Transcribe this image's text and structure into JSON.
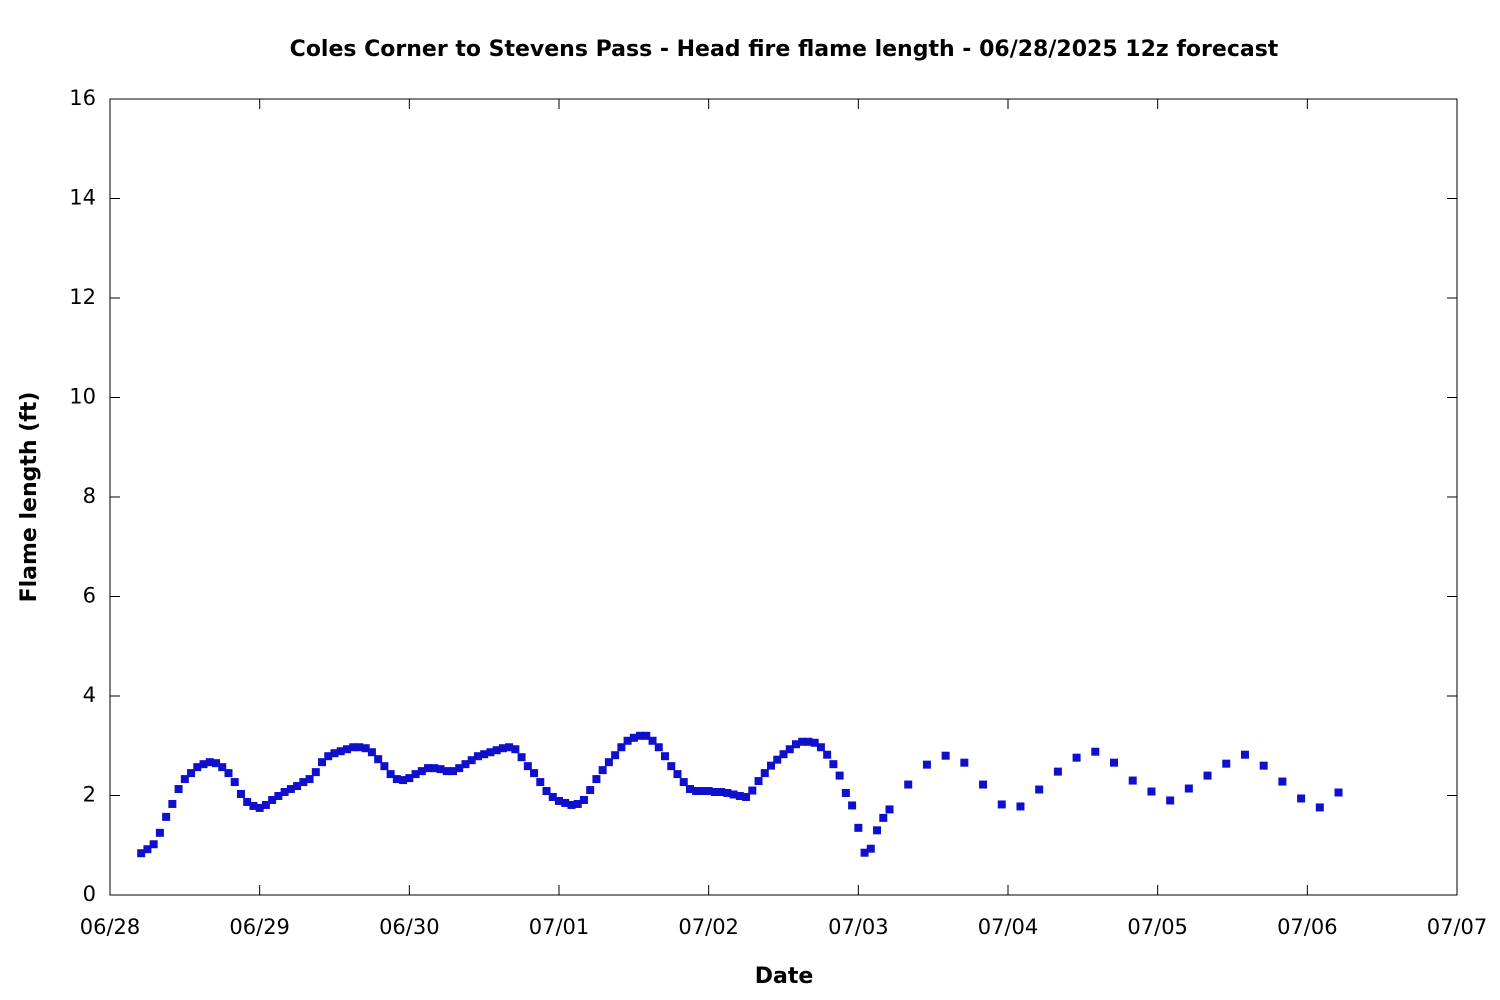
{
  "chart_data": {
    "type": "scatter",
    "title": "Coles Corner to Stevens Pass - Head fire flame length - 06/28/2025 12z forecast",
    "x_label": "Date",
    "y_label": "Flame length (ft)",
    "color": "#1010cc",
    "xlim": [
      0,
      216
    ],
    "xticks": [
      {
        "value": 0,
        "label": "06/28"
      },
      {
        "value": 24,
        "label": "06/29"
      },
      {
        "value": 48,
        "label": "06/30"
      },
      {
        "value": 72,
        "label": "07/01"
      },
      {
        "value": 96,
        "label": "07/02"
      },
      {
        "value": 120,
        "label": "07/03"
      },
      {
        "value": 144,
        "label": "07/04"
      },
      {
        "value": 168,
        "label": "07/05"
      },
      {
        "value": 192,
        "label": "07/06"
      },
      {
        "value": 216,
        "label": "07/07"
      }
    ],
    "ylim": [
      0,
      16
    ],
    "yticks": [
      0,
      2,
      4,
      6,
      8,
      10,
      12,
      14,
      16
    ],
    "x": [
      5,
      6,
      7,
      8,
      9,
      10,
      11,
      12,
      13,
      14,
      15,
      16,
      17,
      18,
      19,
      20,
      21,
      22,
      23,
      24,
      25,
      26,
      27,
      28,
      29,
      30,
      31,
      32,
      33,
      34,
      35,
      36,
      37,
      38,
      39,
      40,
      41,
      42,
      43,
      44,
      45,
      46,
      47,
      48,
      49,
      50,
      51,
      52,
      53,
      54,
      55,
      56,
      57,
      58,
      59,
      60,
      61,
      62,
      63,
      64,
      65,
      66,
      67,
      68,
      69,
      70,
      71,
      72,
      73,
      74,
      75,
      76,
      77,
      78,
      79,
      80,
      81,
      82,
      83,
      84,
      85,
      86,
      87,
      88,
      89,
      90,
      91,
      92,
      93,
      94,
      95,
      96,
      97,
      98,
      99,
      100,
      101,
      102,
      103,
      104,
      105,
      106,
      107,
      108,
      109,
      110,
      111,
      112,
      113,
      114,
      115,
      116,
      117,
      118,
      119,
      120,
      121,
      122,
      123,
      124,
      125,
      128,
      131,
      134,
      137,
      140,
      143,
      146,
      149,
      152,
      155,
      158,
      161,
      164,
      167,
      170,
      173,
      176,
      179,
      182,
      185,
      188,
      191,
      194,
      197
    ],
    "values": [
      0.84,
      0.92,
      1.02,
      1.25,
      1.57,
      1.83,
      2.13,
      2.33,
      2.45,
      2.57,
      2.63,
      2.67,
      2.65,
      2.57,
      2.45,
      2.27,
      2.03,
      1.87,
      1.79,
      1.75,
      1.81,
      1.91,
      1.99,
      2.07,
      2.13,
      2.19,
      2.27,
      2.33,
      2.47,
      2.67,
      2.79,
      2.85,
      2.89,
      2.93,
      2.97,
      2.97,
      2.95,
      2.87,
      2.73,
      2.59,
      2.43,
      2.33,
      2.31,
      2.35,
      2.43,
      2.49,
      2.55,
      2.55,
      2.53,
      2.49,
      2.49,
      2.55,
      2.63,
      2.71,
      2.79,
      2.83,
      2.87,
      2.91,
      2.95,
      2.97,
      2.93,
      2.77,
      2.59,
      2.45,
      2.27,
      2.09,
      1.97,
      1.89,
      1.85,
      1.81,
      1.83,
      1.91,
      2.11,
      2.33,
      2.51,
      2.67,
      2.81,
      2.97,
      3.1,
      3.16,
      3.2,
      3.2,
      3.1,
      2.97,
      2.79,
      2.59,
      2.43,
      2.27,
      2.13,
      2.09,
      2.09,
      2.09,
      2.07,
      2.07,
      2.05,
      2.02,
      1.99,
      1.97,
      2.1,
      2.29,
      2.45,
      2.6,
      2.72,
      2.83,
      2.93,
      3.03,
      3.08,
      3.08,
      3.06,
      2.97,
      2.82,
      2.63,
      2.4,
      2.05,
      1.8,
      1.35,
      0.85,
      0.93,
      1.3,
      1.55,
      1.72,
      2.22,
      2.62,
      2.8,
      2.66,
      2.22,
      1.82,
      1.78,
      2.12,
      2.48,
      2.76,
      2.88,
      2.66,
      2.3,
      2.08,
      1.9,
      2.14,
      2.4,
      2.64,
      2.82,
      2.6,
      2.28,
      1.94,
      1.76,
      2.06
    ]
  }
}
